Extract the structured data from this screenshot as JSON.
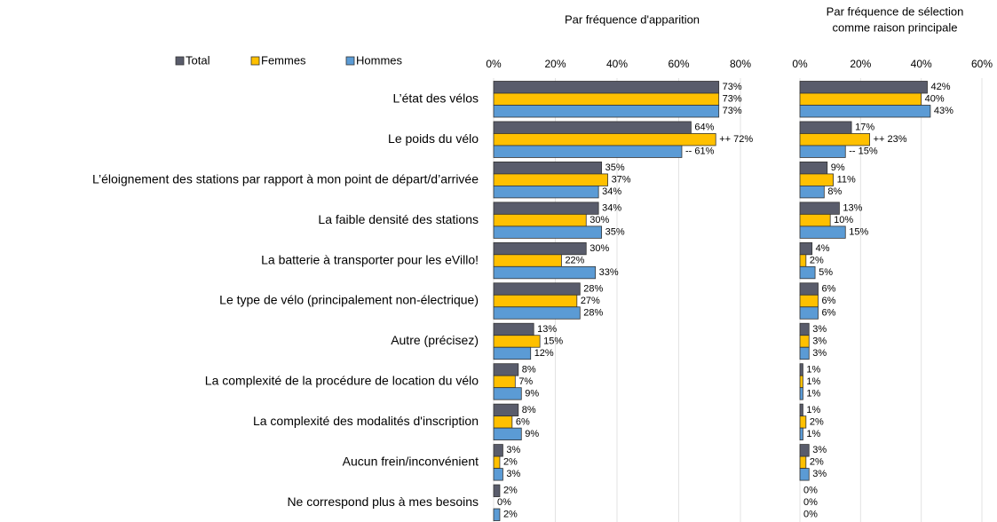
{
  "chart_data": [
    {
      "type": "bar",
      "orientation": "horizontal",
      "title": "Par fréquence d'apparition",
      "categories": [
        "L’état des vélos",
        "Le poids du vélo",
        "L’éloignement des stations par rapport à mon point de départ/d’arrivée",
        "La faible densité des stations",
        "La batterie à transporter pour les eVillo!",
        "Le type de vélo (principalement non-électrique)",
        "Autre (précisez)",
        "La complexité de la procédure de location du vélo",
        "La complexité des modalités d'inscription",
        "Aucun frein/inconvénient",
        "Ne correspond plus à mes besoins"
      ],
      "series": [
        {
          "name": "Total",
          "color": "#595c6b",
          "values": [
            73,
            64,
            35,
            34,
            30,
            28,
            13,
            8,
            8,
            3,
            2
          ],
          "value_labels": [
            "73%",
            "64%",
            "35%",
            "34%",
            "30%",
            "28%",
            "13%",
            "8%",
            "8%",
            "3%",
            "2%"
          ]
        },
        {
          "name": "Femmes",
          "color": "#ffc000",
          "values": [
            73,
            72,
            37,
            30,
            22,
            27,
            15,
            7,
            6,
            2,
            0
          ],
          "value_labels": [
            "73%",
            "++ 72%",
            "37%",
            "30%",
            "22%",
            "27%",
            "15%",
            "7%",
            "6%",
            "2%",
            "0%"
          ]
        },
        {
          "name": "Hommes",
          "color": "#5b9bd5",
          "values": [
            73,
            61,
            34,
            35,
            33,
            28,
            12,
            9,
            9,
            3,
            2
          ],
          "value_labels": [
            "73%",
            "-- 61%",
            "34%",
            "35%",
            "33%",
            "28%",
            "12%",
            "9%",
            "9%",
            "3%",
            "2%"
          ]
        }
      ],
      "xlim": [
        0,
        80
      ],
      "xticks": [
        {
          "value": 0,
          "label": "0%"
        },
        {
          "value": 20,
          "label": "20%"
        },
        {
          "value": 40,
          "label": "40%"
        },
        {
          "value": 60,
          "label": "60%"
        },
        {
          "value": 80,
          "label": "80%"
        }
      ],
      "grid": true,
      "legend": "top-left"
    },
    {
      "type": "bar",
      "orientation": "horizontal",
      "title": [
        "Par fréquence de sélection",
        "comme raison principale"
      ],
      "series": [
        {
          "color": "#595c6b",
          "values": [
            42,
            17,
            9,
            13,
            4,
            6,
            3,
            1,
            1,
            3,
            0
          ],
          "value_labels": [
            "42%",
            "17%",
            "9%",
            "13%",
            "4%",
            "6%",
            "3%",
            "1%",
            "1%",
            "3%",
            "0%"
          ]
        },
        {
          "color": "#ffc000",
          "values": [
            40,
            23,
            11,
            10,
            2,
            6,
            3,
            1,
            2,
            2,
            0
          ],
          "value_labels": [
            "40%",
            "++ 23%",
            "11%",
            "10%",
            "2%",
            "6%",
            "3%",
            "1%",
            "2%",
            "2%",
            "0%"
          ]
        },
        {
          "color": "#5b9bd5",
          "values": [
            43,
            15,
            8,
            15,
            5,
            6,
            3,
            1,
            1,
            3,
            0
          ],
          "value_labels": [
            "43%",
            "-- 15%",
            "8%",
            "15%",
            "5%",
            "6%",
            "3%",
            "1%",
            "1%",
            "3%",
            "0%"
          ]
        }
      ],
      "xlim": [
        0,
        60
      ],
      "xticks": [
        {
          "value": 0,
          "label": "0%"
        },
        {
          "value": 20,
          "label": "20%"
        },
        {
          "value": 40,
          "label": "40%"
        },
        {
          "value": 60,
          "label": "60%"
        }
      ],
      "grid": true
    }
  ]
}
